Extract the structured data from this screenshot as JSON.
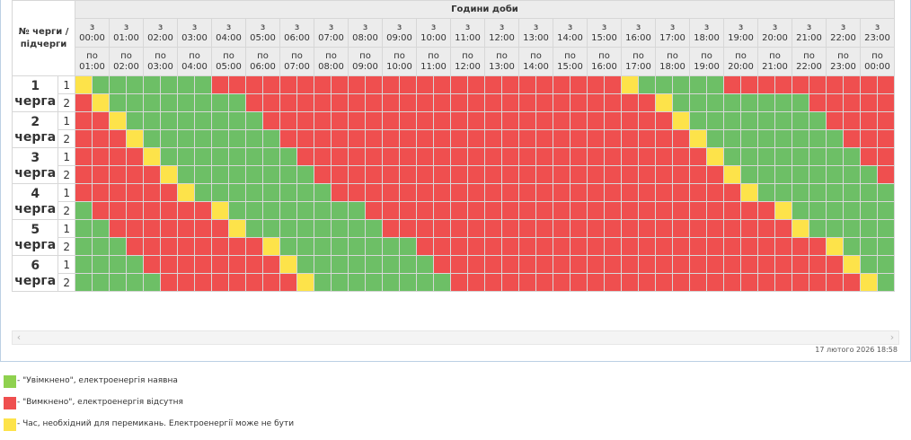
{
  "header": {
    "queue_label": "№ черги / підчерги",
    "hours_title": "Години доби",
    "from_prefix": "з",
    "to_prefix": "по",
    "hours_from": [
      "00:00",
      "01:00",
      "02:00",
      "03:00",
      "04:00",
      "05:00",
      "06:00",
      "07:00",
      "08:00",
      "09:00",
      "10:00",
      "11:00",
      "12:00",
      "13:00",
      "14:00",
      "15:00",
      "16:00",
      "17:00",
      "18:00",
      "19:00",
      "20:00",
      "21:00",
      "22:00",
      "23:00"
    ],
    "hours_to": [
      "01:00",
      "02:00",
      "03:00",
      "04:00",
      "05:00",
      "06:00",
      "07:00",
      "08:00",
      "09:00",
      "10:00",
      "11:00",
      "12:00",
      "13:00",
      "14:00",
      "15:00",
      "16:00",
      "17:00",
      "18:00",
      "19:00",
      "20:00",
      "21:00",
      "22:00",
      "23:00",
      "00:00"
    ]
  },
  "legend_codes": {
    "g": "on",
    "r": "off",
    "y": "maybe"
  },
  "queues": [
    {
      "number": "1",
      "label": "черга",
      "subqueues": [
        {
          "id": "1",
          "slots": "ygggggggrrrrrrrrrrrrrrrrrrrrrrrrygggggrrrrrrrrrrrrrrrrrrrrrrrrrrygggggggrrrrrrrrrrrrrrrrrrrrrrrryggggggrrrrrrrrrr"
        },
        {
          "id": "2",
          "slots": "ryggggggggrrrrrrrrrrrrrrrrrrrrrrrryggggggggrrrrrrrrrrrrrrrrrrrrrrrryggggggggrrrrrrrrrrrrrrrrrrrrrrrryggggggggrrrrrr"
        }
      ]
    },
    {
      "number": "2",
      "label": "черга",
      "subqueues": [
        {
          "id": "1",
          "slots": "rryggggggggrrrrrrrrrrrrrrrrrrrrrrrryggggggggrrrrrrrrrrrrrrrrrrrrrrrryggggggggrrrrrrrrrrrrrrrrrrrrrrrryggggggggrrrrr"
        },
        {
          "id": "2",
          "slots": "rrryggggggggrrrrrrrrrrrrrrrrrrrrrrrryggggggggrrrrrrrrrrrrrrrrrrrrrrrryggggggggrrrrrrrrrrrrrrrrrrrrrrrryggggggggrrrr"
        }
      ]
    },
    {
      "number": "3",
      "label": "черга",
      "subqueues": [
        {
          "id": "1",
          "slots": "rrrryggggggggrrrrrrrrrrrrrrrrrrrrrrrryggggggggrrrrrrrrrrrrrrrrrrrrrrrryggggggggrrrrrrrrrrrrrrrrrrrrrrrryggggggggrrr"
        },
        {
          "id": "2",
          "slots": "rrrrryggggggggrrrrrrrrrrrrrrrrrrrrrrrryggggggggrrrrrrrrrrrrrrrrrrrrrrrryggggggggrrrrrrrrrrrrrrrrrrrrrrrryggggggggrr"
        }
      ]
    },
    {
      "number": "4",
      "label": "черга",
      "subqueues": [
        {
          "id": "1",
          "slots": "rrrrrryggggggggrrrrrrrrrrrrrrrrrrrrrrrryggggggggrrrrrrrrrrrrrrrrrrrrrrrryggggggggrrrrrrrrrrrrrrrrrrrrrrrryggggggggr"
        },
        {
          "id": "2",
          "slots": "grrrrrrryggggggggrrrrrrrrrrrrrrrrrrrrrrrryggggggggrrrrrrrrrrrrrrrrrrrrrrrryggggggggrrrrrrrrrrrrrrrrrrrrrrrrygggggg"
        }
      ]
    },
    {
      "number": "5",
      "label": "черга",
      "subqueues": [
        {
          "id": "1",
          "slots": "ggrrrrrrryggggggggrrrrrrrrrrrrrrrrrrrrrrrryggggggggrrrrrrrrrrrrrrrrrrrrrrrryggggggggrrrrrrrrrrrrrrrrrrrrrrrryggggg"
        },
        {
          "id": "2",
          "slots": "gggrrrrrrrryggggggggrrrrrrrrrrrrrrrrrrrrrrrryggggggggrrrrrrrrrrrrrrrrrrrrrrrryggggggggrrrrrrrrrrrrrrrrrrrrrrrrygggg"
        }
      ]
    },
    {
      "number": "6",
      "label": "черга",
      "subqueues": [
        {
          "id": "1",
          "slots": "ggggrrrrrrrryggggggggrrrrrrrrrrrrrrrrrrrrrrrryggggggggrrrrrrrrrrrrrrrrrrrrrrrryggggggggrrrrrrrrrrrrrrrrrrrrrrrryggg"
        },
        {
          "id": "2",
          "slots": "gggggrrrrrrrryggggggggrrrrrrrrrrrrrrrrrrrrrrrryggggggggrrrrrrrrrrrrrrrrrrrrrrrryggggggggrrrrrrrrrrrrrrrrrrrrrrrrygg"
        }
      ]
    }
  ],
  "timestamp": "17 лютого 2026 18:58",
  "scroll": {
    "left_arrow": "‹",
    "right_arrow": "›"
  },
  "legend": [
    {
      "color": "#8fd14f",
      "text": "- \"Увімкнено\", електроенергія наявна"
    },
    {
      "color": "#ef4f4f",
      "text": "- \"Вимкнено\", електроенергія відсутня"
    },
    {
      "color": "#fde34a",
      "text": "- Час, необхідний для перемикань. Електроенергії може не бути"
    }
  ]
}
